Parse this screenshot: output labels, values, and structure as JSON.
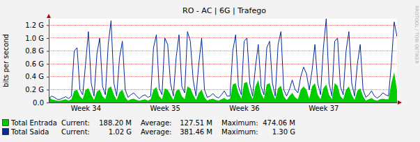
{
  "chart_data": {
    "type": "line",
    "title": "RO - AC | 6G | Trafego",
    "y_label": "bits per second",
    "credit": "RRDTOOL / TOBI OETIKER",
    "categories": [
      null,
      null,
      null,
      null,
      null,
      null,
      null,
      null,
      null,
      null,
      null,
      null,
      null,
      "Week 34",
      null,
      null,
      null,
      null,
      null,
      null,
      null,
      null,
      null,
      null,
      null,
      null,
      null,
      null,
      null,
      null,
      null,
      null,
      null,
      null,
      null,
      null,
      null,
      null,
      null,
      null,
      null,
      "Week 35",
      null,
      null,
      null,
      null,
      null,
      null,
      null,
      null,
      null,
      null,
      null,
      null,
      null,
      null,
      null,
      null,
      null,
      null,
      null,
      null,
      null,
      null,
      null,
      null,
      null,
      null,
      null,
      "Week 36",
      null,
      null,
      null,
      null,
      null,
      null,
      null,
      null,
      null,
      null,
      null,
      null,
      null,
      null,
      null,
      null,
      null,
      null,
      null,
      null,
      null,
      null,
      null,
      null,
      null,
      null,
      null,
      "Week 37",
      null,
      null,
      null,
      null,
      null,
      null,
      null,
      null,
      null,
      null,
      null,
      null,
      null,
      null,
      null,
      null,
      null,
      null,
      null,
      null,
      null,
      null,
      null,
      null,
      null,
      null
    ],
    "series": [
      {
        "name": "Total Entrada",
        "type": "area",
        "color": "#00cc00",
        "stats": [
          {
            "label": "Current:",
            "value": "188.20 M"
          },
          {
            "label": "Average:",
            "value": "127.51 M"
          },
          {
            "label": "Maximum:",
            "value": "474.06 M"
          }
        ],
        "values": [
          100000000.0,
          50000000.0,
          40000000.0,
          30000000.0,
          30000000.0,
          40000000.0,
          50000000.0,
          30000000.0,
          50000000.0,
          180000000.0,
          200000000.0,
          100000000.0,
          50000000.0,
          200000000.0,
          220000000.0,
          120000000.0,
          40000000.0,
          170000000.0,
          200000000.0,
          100000000.0,
          50000000.0,
          220000000.0,
          250000000.0,
          120000000.0,
          40000000.0,
          160000000.0,
          200000000.0,
          80000000.0,
          30000000.0,
          50000000.0,
          60000000.0,
          40000000.0,
          30000000.0,
          40000000.0,
          50000000.0,
          30000000.0,
          50000000.0,
          200000000.0,
          240000000.0,
          100000000.0,
          50000000.0,
          220000000.0,
          200000000.0,
          120000000.0,
          40000000.0,
          180000000.0,
          210000000.0,
          100000000.0,
          50000000.0,
          250000000.0,
          220000000.0,
          120000000.0,
          40000000.0,
          150000000.0,
          200000000.0,
          80000000.0,
          30000000.0,
          50000000.0,
          60000000.0,
          40000000.0,
          30000000.0,
          50000000.0,
          70000000.0,
          40000000.0,
          60000000.0,
          280000000.0,
          300000000.0,
          150000000.0,
          60000000.0,
          300000000.0,
          320000000.0,
          150000000.0,
          50000000.0,
          250000000.0,
          350000000.0,
          140000000.0,
          60000000.0,
          280000000.0,
          300000000.0,
          150000000.0,
          50000000.0,
          220000000.0,
          260000000.0,
          100000000.0,
          40000000.0,
          100000000.0,
          150000000.0,
          80000000.0,
          50000000.0,
          200000000.0,
          250000000.0,
          200000000.0,
          60000000.0,
          250000000.0,
          300000000.0,
          120000000.0,
          50000000.0,
          220000000.0,
          280000000.0,
          120000000.0,
          50000000.0,
          300000000.0,
          260000000.0,
          100000000.0,
          50000000.0,
          200000000.0,
          250000000.0,
          120000000.0,
          40000000.0,
          180000000.0,
          220000000.0,
          100000000.0,
          30000000.0,
          50000000.0,
          70000000.0,
          40000000.0,
          30000000.0,
          50000000.0,
          60000000.0,
          50000000.0,
          50000000.0,
          300000000.0,
          470000000.0,
          188200000.0
        ]
      },
      {
        "name": "Total Saida",
        "type": "line",
        "color": "#002a97",
        "stats": [
          {
            "label": "Current:",
            "value": "1.02 G"
          },
          {
            "label": "Average:",
            "value": "381.46 M"
          },
          {
            "label": "Maximum:",
            "value": "1.30 G"
          }
        ],
        "values": [
          60000000.0,
          100000000.0,
          80000000.0,
          50000000.0,
          50000000.0,
          70000000.0,
          90000000.0,
          60000000.0,
          100000000.0,
          800000000.0,
          850000000.0,
          200000000.0,
          120000000.0,
          600000000.0,
          1100000000.0,
          300000000.0,
          100000000.0,
          750000000.0,
          1000000000.0,
          250000000.0,
          120000000.0,
          900000000.0,
          1270000000.0,
          300000000.0,
          100000000.0,
          700000000.0,
          950000000.0,
          200000000.0,
          80000000.0,
          120000000.0,
          150000000.0,
          100000000.0,
          60000000.0,
          100000000.0,
          120000000.0,
          80000000.0,
          100000000.0,
          850000000.0,
          1050000000.0,
          220000000.0,
          120000000.0,
          1000000000.0,
          900000000.0,
          300000000.0,
          100000000.0,
          700000000.0,
          1050000000.0,
          250000000.0,
          150000000.0,
          1100000000.0,
          950000000.0,
          350000000.0,
          100000000.0,
          600000000.0,
          1000000000.0,
          200000000.0,
          80000000.0,
          100000000.0,
          140000000.0,
          90000000.0,
          70000000.0,
          120000000.0,
          180000000.0,
          100000000.0,
          100000000.0,
          800000000.0,
          1050000000.0,
          250000000.0,
          120000000.0,
          950000000.0,
          1000000000.0,
          300000000.0,
          100000000.0,
          550000000.0,
          900000000.0,
          250000000.0,
          120000000.0,
          850000000.0,
          950000000.0,
          300000000.0,
          100000000.0,
          900000000.0,
          1100000000.0,
          200000000.0,
          100000000.0,
          200000000.0,
          350000000.0,
          200000000.0,
          150000000.0,
          400000000.0,
          550000000.0,
          450000000.0,
          200000000.0,
          500000000.0,
          900000000.0,
          300000000.0,
          120000000.0,
          850000000.0,
          1300000000.0,
          300000000.0,
          100000000.0,
          950000000.0,
          1000000000.0,
          250000000.0,
          120000000.0,
          800000000.0,
          1100000000.0,
          300000000.0,
          100000000.0,
          600000000.0,
          900000000.0,
          200000000.0,
          80000000.0,
          120000000.0,
          180000000.0,
          100000000.0,
          70000000.0,
          100000000.0,
          150000000.0,
          120000000.0,
          100000000.0,
          600000000.0,
          1250000000.0,
          1020000000.0
        ]
      }
    ],
    "ylim": [
      0,
      1300000000
    ],
    "yticks": [
      {
        "value": 0,
        "label": "0.0"
      },
      {
        "value": 200000000,
        "label": "0.2 G"
      },
      {
        "value": 400000000,
        "label": "0.4 G"
      },
      {
        "value": 600000000,
        "label": "0.6 G"
      },
      {
        "value": 800000000,
        "label": "0.8 G"
      },
      {
        "value": 1000000000,
        "label": "1.0 G"
      },
      {
        "value": 1200000000,
        "label": "1.2 G"
      }
    ],
    "grid": true,
    "legend": "bottom"
  }
}
